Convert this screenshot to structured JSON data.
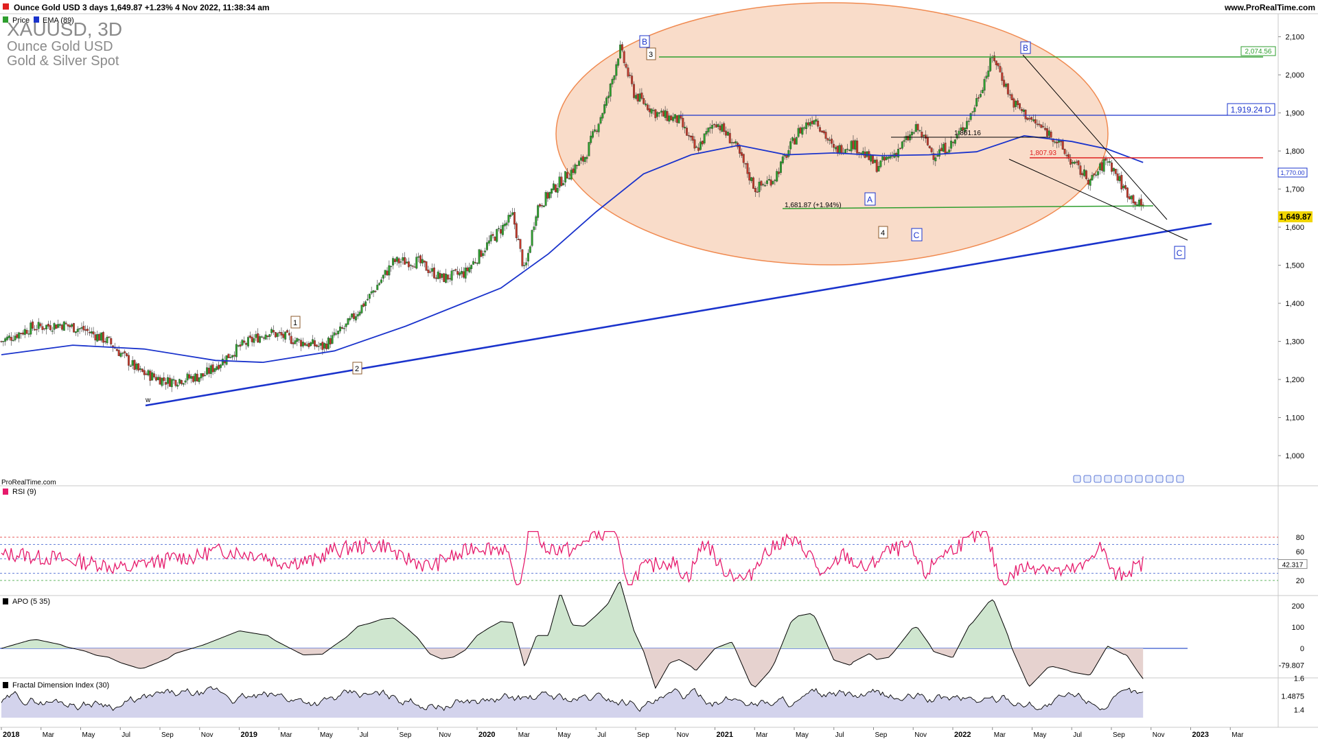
{
  "header": {
    "title_line": "Ounce Gold USD 3 days 1,649.87 +1.23% 4 Nov 2022, 11:38:34 am",
    "site": "www.ProRealTime.com",
    "legend": [
      {
        "label": "Price",
        "color": "#2e9e2e"
      },
      {
        "label": "EMA (89)",
        "color": "#1a33cc"
      }
    ]
  },
  "watermark": {
    "symbol": "XAUUSD, 3D",
    "name": "Ounce Gold USD",
    "category": "Gold & Silver Spot"
  },
  "footer_brand": "ProRealTime.com",
  "chart_data": [
    {
      "type": "candlestick",
      "name": "price",
      "x_axis": [
        "2018",
        "Mar",
        "May",
        "Jul",
        "Sep",
        "Nov",
        "2019",
        "Mar",
        "May",
        "Jul",
        "Sep",
        "Nov",
        "2020",
        "Mar",
        "May",
        "Jul",
        "Sep",
        "Nov",
        "2021",
        "Mar",
        "May",
        "Jul",
        "Sep",
        "Nov",
        "2022",
        "Mar",
        "May",
        "Jul",
        "Sep",
        "Nov",
        "2023",
        "Mar"
      ],
      "y_ticks": [
        "2,100",
        "2,000",
        "1,900",
        "1,800",
        "1,700",
        "1,600",
        "1,500",
        "1,400",
        "1,300",
        "1,200",
        "1,100",
        "1,000"
      ],
      "ylim": [
        960,
        2140
      ],
      "price_path": [
        [
          2018.0,
          1300
        ],
        [
          2018.12,
          1335
        ],
        [
          2018.25,
          1345
        ],
        [
          2018.35,
          1330
        ],
        [
          2018.45,
          1300
        ],
        [
          2018.58,
          1220
        ],
        [
          2018.7,
          1195
        ],
        [
          2018.85,
          1210
        ],
        [
          2019.0,
          1285
        ],
        [
          2019.12,
          1325
        ],
        [
          2019.25,
          1300
        ],
        [
          2019.35,
          1285
        ],
        [
          2019.45,
          1340
        ],
        [
          2019.55,
          1420
        ],
        [
          2019.65,
          1510
        ],
        [
          2019.75,
          1510
        ],
        [
          2019.85,
          1465
        ],
        [
          2019.95,
          1480
        ],
        [
          2020.05,
          1560
        ],
        [
          2020.15,
          1630
        ],
        [
          2020.2,
          1480
        ],
        [
          2020.25,
          1650
        ],
        [
          2020.35,
          1720
        ],
        [
          2020.45,
          1780
        ],
        [
          2020.55,
          1940
        ],
        [
          2020.6,
          2070
        ],
        [
          2020.66,
          1950
        ],
        [
          2020.75,
          1900
        ],
        [
          2020.85,
          1880
        ],
        [
          2020.92,
          1800
        ],
        [
          2021.0,
          1880
        ],
        [
          2021.08,
          1820
        ],
        [
          2021.17,
          1700
        ],
        [
          2021.25,
          1730
        ],
        [
          2021.35,
          1850
        ],
        [
          2021.42,
          1890
        ],
        [
          2021.5,
          1800
        ],
        [
          2021.58,
          1820
        ],
        [
          2021.68,
          1760
        ],
        [
          2021.75,
          1790
        ],
        [
          2021.85,
          1860
        ],
        [
          2021.92,
          1790
        ],
        [
          2022.0,
          1820
        ],
        [
          2022.08,
          1900
        ],
        [
          2022.17,
          2050
        ],
        [
          2022.25,
          1930
        ],
        [
          2022.33,
          1880
        ],
        [
          2022.42,
          1840
        ],
        [
          2022.5,
          1770
        ],
        [
          2022.58,
          1720
        ],
        [
          2022.65,
          1780
        ],
        [
          2022.72,
          1700
        ],
        [
          2022.78,
          1660
        ],
        [
          2022.8,
          1650
        ]
      ]
    },
    {
      "type": "line",
      "name": "EMA (89)",
      "color": "#1a33cc",
      "points": [
        [
          2018.0,
          1265
        ],
        [
          2018.3,
          1290
        ],
        [
          2018.6,
          1280
        ],
        [
          2018.9,
          1250
        ],
        [
          2019.1,
          1245
        ],
        [
          2019.4,
          1275
        ],
        [
          2019.7,
          1340
        ],
        [
          2019.9,
          1390
        ],
        [
          2020.1,
          1440
        ],
        [
          2020.3,
          1530
        ],
        [
          2020.5,
          1640
        ],
        [
          2020.7,
          1740
        ],
        [
          2020.9,
          1790
        ],
        [
          2021.1,
          1815
        ],
        [
          2021.3,
          1790
        ],
        [
          2021.5,
          1795
        ],
        [
          2021.7,
          1788
        ],
        [
          2021.9,
          1790
        ],
        [
          2022.1,
          1798
        ],
        [
          2022.3,
          1840
        ],
        [
          2022.5,
          1825
        ],
        [
          2022.65,
          1805
        ],
        [
          2022.8,
          1770
        ]
      ]
    },
    {
      "type": "line",
      "name": "RSI (9)",
      "ylim": [
        0,
        100
      ],
      "y_ticks": [
        "80",
        "60",
        "40",
        "20"
      ],
      "levels": [
        80,
        70,
        50,
        30,
        20
      ],
      "current": "42.317"
    },
    {
      "type": "area",
      "name": "APO (5 35)",
      "y_ticks": [
        "200",
        "100",
        "0",
        "-79.807"
      ],
      "current": "-79.807"
    },
    {
      "type": "area",
      "name": "Fractal Dimension Index (30)",
      "y_ticks": [
        "1.6",
        "1.4875",
        "1.4"
      ],
      "current": "1.4875"
    }
  ],
  "annotations": {
    "price_labels": {
      "high": "2,074.56",
      "resist": "1,919.24 D",
      "ema": "1,770.00",
      "last": "1,649.87"
    },
    "levels_text": {
      "mid": "1,861.16",
      "red": "1,807.93",
      "low": "1,681.87 (+1.94%)"
    },
    "waves": {
      "w": "w",
      "n1": "1",
      "n2": "2",
      "n3": "3",
      "n4": "4",
      "B1": "B",
      "B2": "B",
      "A": "A",
      "C1": "C",
      "C2": "C"
    }
  },
  "colors": {
    "up": "#2e9e2e",
    "down": "#c0392b",
    "ema": "#1a33cc",
    "rsi": "#e6196b",
    "ellipse": "#f8d9c4",
    "ellipse_stroke": "#f08040",
    "green_line": "#2e9e2e",
    "red_line": "#e02020"
  }
}
